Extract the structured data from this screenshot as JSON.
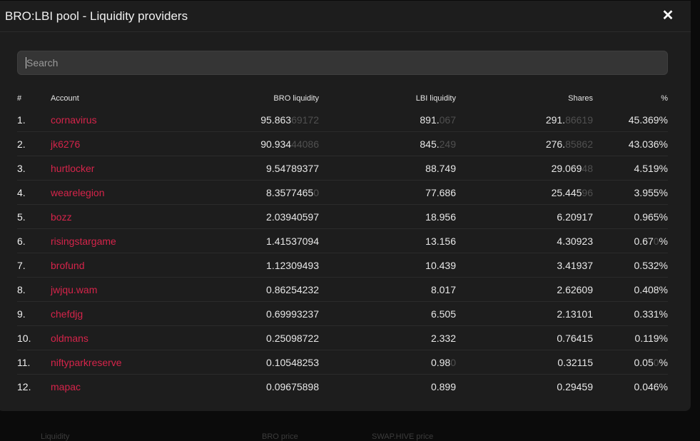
{
  "modal": {
    "title": "BRO:LBI pool - Liquidity providers",
    "close_icon": "close-icon",
    "search": {
      "placeholder": "Search",
      "value": ""
    }
  },
  "table": {
    "headers": [
      "#",
      "Account",
      "BRO liquidity",
      "LBI liquidity",
      "Shares",
      "%"
    ],
    "rows": [
      {
        "rank": "1.",
        "account": "cornavirus",
        "bro": "95.863",
        "bro_dim": "69172",
        "lbi": "891.",
        "lbi_dim": "067",
        "shares": "291.",
        "shares_dim": "86619",
        "pct": "45.369%",
        "pct_dim": "",
        "pct_suffix": ""
      },
      {
        "rank": "2.",
        "account": "jk6276",
        "bro": "90.934",
        "bro_dim": "44086",
        "lbi": "845.",
        "lbi_dim": "249",
        "shares": "276.",
        "shares_dim": "85862",
        "pct": "43.036%",
        "pct_dim": "",
        "pct_suffix": ""
      },
      {
        "rank": "3.",
        "account": "hurtlocker",
        "bro": "9.54789377",
        "bro_dim": "",
        "lbi": "88.749",
        "lbi_dim": "",
        "shares": "29.069",
        "shares_dim": "48",
        "pct": "4.519%",
        "pct_dim": "",
        "pct_suffix": ""
      },
      {
        "rank": "4.",
        "account": "wearelegion",
        "bro": "8.3577465",
        "bro_dim": "0",
        "lbi": "77.686",
        "lbi_dim": "",
        "shares": "25.445",
        "shares_dim": "96",
        "pct": "3.955%",
        "pct_dim": "",
        "pct_suffix": ""
      },
      {
        "rank": "5.",
        "account": "bozz",
        "bro": "2.03940597",
        "bro_dim": "",
        "lbi": "18.956",
        "lbi_dim": "",
        "shares": "6.20917",
        "shares_dim": "",
        "pct": "0.965%",
        "pct_dim": "",
        "pct_suffix": ""
      },
      {
        "rank": "6.",
        "account": "risingstargame",
        "bro": "1.41537094",
        "bro_dim": "",
        "lbi": "13.156",
        "lbi_dim": "",
        "shares": "4.30923",
        "shares_dim": "",
        "pct": "0.67",
        "pct_dim": "0",
        "pct_suffix": "%"
      },
      {
        "rank": "7.",
        "account": "brofund",
        "bro": "1.12309493",
        "bro_dim": "",
        "lbi": "10.439",
        "lbi_dim": "",
        "shares": "3.41937",
        "shares_dim": "",
        "pct": "0.532%",
        "pct_dim": "",
        "pct_suffix": ""
      },
      {
        "rank": "8.",
        "account": "jwjqu.wam",
        "bro": "0.86254232",
        "bro_dim": "",
        "lbi": "8.017",
        "lbi_dim": "",
        "shares": "2.62609",
        "shares_dim": "",
        "pct": "0.408%",
        "pct_dim": "",
        "pct_suffix": ""
      },
      {
        "rank": "9.",
        "account": "chefdjg",
        "bro": "0.69993237",
        "bro_dim": "",
        "lbi": "6.505",
        "lbi_dim": "",
        "shares": "2.13101",
        "shares_dim": "",
        "pct": "0.331%",
        "pct_dim": "",
        "pct_suffix": ""
      },
      {
        "rank": "10.",
        "account": "oldmans",
        "bro": "0.25098722",
        "bro_dim": "",
        "lbi": "2.332",
        "lbi_dim": "",
        "shares": "0.76415",
        "shares_dim": "",
        "pct": "0.119%",
        "pct_dim": "",
        "pct_suffix": ""
      },
      {
        "rank": "11.",
        "account": "niftyparkreserve",
        "bro": "0.10548253",
        "bro_dim": "",
        "lbi": "0.98",
        "lbi_dim": "0",
        "shares": "0.32115",
        "shares_dim": "",
        "pct": "0.05",
        "pct_dim": "0",
        "pct_suffix": "%"
      },
      {
        "rank": "12.",
        "account": "mapac",
        "bro": "0.09675898",
        "bro_dim": "",
        "lbi": "0.899",
        "lbi_dim": "",
        "shares": "0.29459",
        "shares_dim": "",
        "pct": "0.046%",
        "pct_dim": "",
        "pct_suffix": ""
      }
    ]
  },
  "background": {
    "footer_labels": [
      "Liquidity",
      "BRO price",
      "SWAP.HIVE price"
    ]
  }
}
